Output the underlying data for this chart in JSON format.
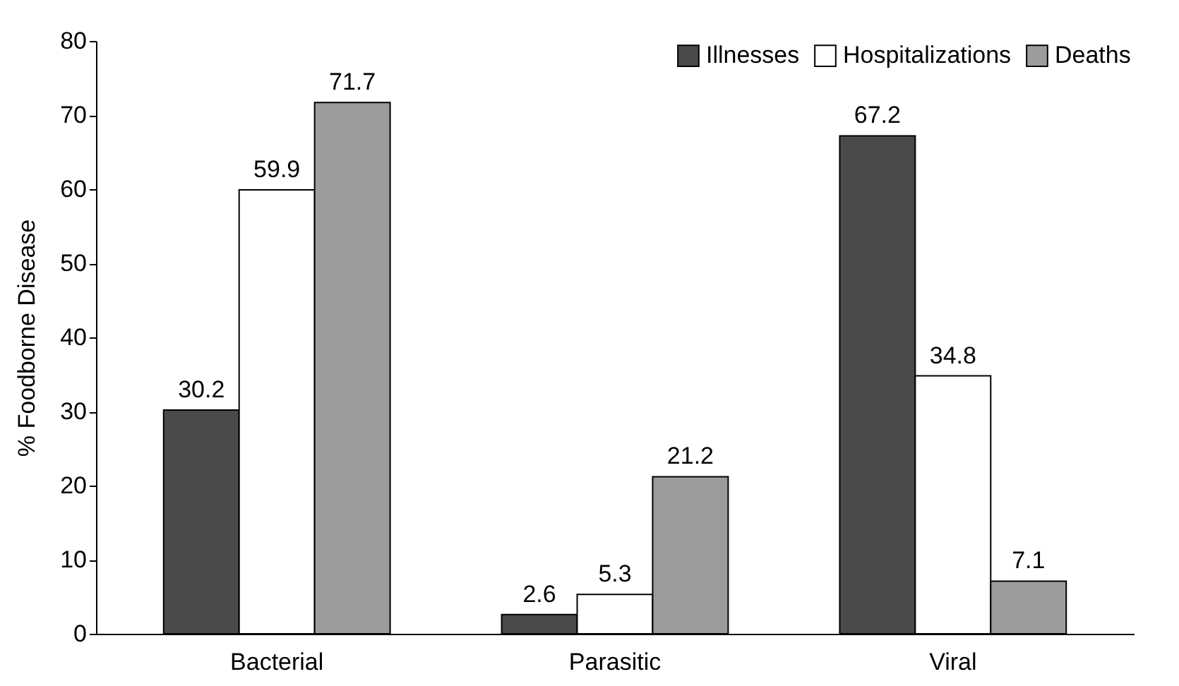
{
  "chart_data": {
    "type": "bar",
    "ylabel": "% Foodborne Disease",
    "categories": [
      "Bacterial",
      "Parasitic",
      "Viral"
    ],
    "series": [
      {
        "name": "Illnesses",
        "color": "#4a4a4a",
        "values": [
          30.2,
          2.6,
          67.2
        ]
      },
      {
        "name": "Hospitalizations",
        "color": "#ffffff",
        "values": [
          59.9,
          5.3,
          34.8
        ]
      },
      {
        "name": "Deaths",
        "color": "#9c9c9c",
        "values": [
          71.7,
          21.2,
          7.1
        ]
      }
    ],
    "ylim": [
      0,
      80
    ],
    "yticks": [
      0,
      10,
      20,
      30,
      40,
      50,
      60,
      70,
      80
    ],
    "grid": false,
    "legend": "top right",
    "data_labels": true
  }
}
